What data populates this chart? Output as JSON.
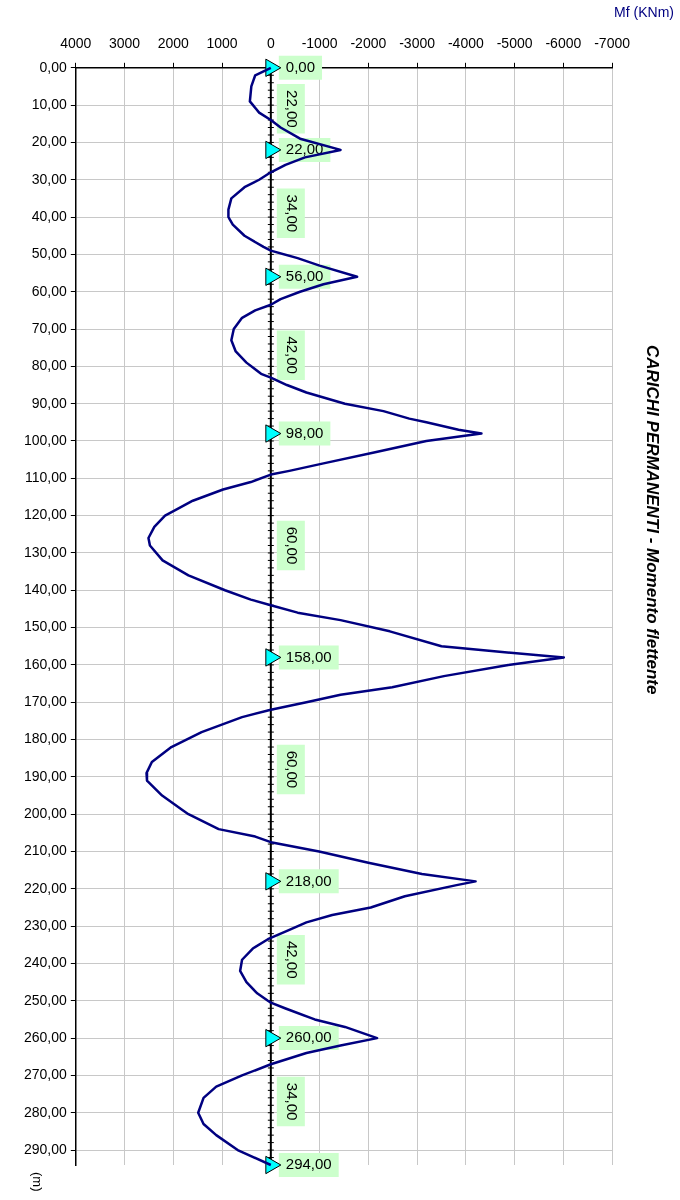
{
  "chart_data": {
    "type": "line",
    "orientation": "horizontal",
    "title": "CARICHI PERMANENTI - Momento flettente",
    "xlabel": "Mf (KNm)",
    "ylabel": "(m)",
    "xlim": [
      4000,
      -7000
    ],
    "xticks": [
      4000,
      3000,
      2000,
      1000,
      0,
      -1000,
      -2000,
      -3000,
      -4000,
      -5000,
      -6000,
      -7000
    ],
    "ylim": [
      294,
      0
    ],
    "yticks": [
      {
        "value": 0,
        "label": "0,00"
      },
      {
        "value": 10,
        "label": "10,00"
      },
      {
        "value": 20,
        "label": "20,00"
      },
      {
        "value": 30,
        "label": "30,00"
      },
      {
        "value": 40,
        "label": "40,00"
      },
      {
        "value": 50,
        "label": "50,00"
      },
      {
        "value": 60,
        "label": "60,00"
      },
      {
        "value": 70,
        "label": "70,00"
      },
      {
        "value": 80,
        "label": "80,00"
      },
      {
        "value": 90,
        "label": "90,00"
      },
      {
        "value": 100,
        "label": "100,00"
      },
      {
        "value": 110,
        "label": "110,00"
      },
      {
        "value": 120,
        "label": "120,00"
      },
      {
        "value": 130,
        "label": "130,00"
      },
      {
        "value": 140,
        "label": "140,00"
      },
      {
        "value": 150,
        "label": "150,00"
      },
      {
        "value": 160,
        "label": "160,00"
      },
      {
        "value": 170,
        "label": "170,00"
      },
      {
        "value": 180,
        "label": "180,00"
      },
      {
        "value": 190,
        "label": "190,00"
      },
      {
        "value": 200,
        "label": "200,00"
      },
      {
        "value": 210,
        "label": "210,00"
      },
      {
        "value": 220,
        "label": "220,00"
      },
      {
        "value": 230,
        "label": "230,00"
      },
      {
        "value": 240,
        "label": "240,00"
      },
      {
        "value": 250,
        "label": "250,00"
      },
      {
        "value": 260,
        "label": "260,00"
      },
      {
        "value": 270,
        "label": "270,00"
      },
      {
        "value": 280,
        "label": "280,00"
      },
      {
        "value": 290,
        "label": "290,00"
      }
    ],
    "grid": true,
    "legend": false,
    "ref_lines": [
      {
        "axis": "x",
        "value": 0,
        "color": "#000000"
      }
    ],
    "series": [
      {
        "type": "line",
        "color": "#000080",
        "marker": "none",
        "x": [
          0,
          2,
          5,
          9,
          12,
          14,
          16,
          19,
          22,
          24,
          26,
          28,
          30,
          32,
          35,
          38,
          40,
          42,
          45,
          48,
          49,
          51,
          53,
          56,
          58,
          60,
          62,
          63.5,
          65,
          67,
          70,
          73,
          76,
          79,
          82,
          83,
          85,
          87,
          90,
          92,
          94,
          95,
          97,
          98,
          100,
          103,
          106,
          108,
          109,
          111,
          113,
          116,
          120,
          123,
          126,
          128,
          132,
          136,
          140,
          142.5,
          144,
          146,
          148,
          151,
          155,
          156.5,
          158,
          160,
          163,
          166,
          168,
          170,
          172,
          174,
          178,
          182,
          186,
          189,
          191,
          195,
          199,
          200,
          204,
          206,
          207.5,
          210,
          213,
          216,
          218,
          219,
          222,
          225,
          227,
          229,
          231,
          233.5,
          236,
          239,
          242,
          245,
          248,
          250,
          250.5,
          252,
          255,
          257,
          260,
          262,
          264,
          267,
          270,
          273,
          276,
          280,
          283,
          286,
          290,
          294
        ],
        "values": [
          0,
          320,
          400,
          430,
          240,
          0,
          -200,
          -600,
          -1430,
          -700,
          -300,
          0,
          240,
          540,
          810,
          870,
          870,
          780,
          540,
          150,
          0,
          -550,
          -1000,
          -1770,
          -1080,
          -600,
          -200,
          0,
          320,
          590,
          760,
          810,
          720,
          500,
          200,
          0,
          -330,
          -730,
          -1520,
          -2310,
          -2840,
          -3190,
          -3850,
          -4320,
          -3190,
          -2140,
          -1080,
          -380,
          0,
          410,
          980,
          1600,
          2170,
          2390,
          2510,
          2480,
          2220,
          1690,
          940,
          410,
          0,
          -550,
          -1430,
          -2440,
          -3500,
          -4690,
          -6010,
          -4870,
          -3550,
          -2490,
          -1430,
          -730,
          0,
          590,
          1420,
          2040,
          2440,
          2550,
          2540,
          2230,
          1800,
          1690,
          1070,
          320,
          0,
          -990,
          -2000,
          -3100,
          -4200,
          -3810,
          -2750,
          -2050,
          -1260,
          -730,
          -380,
          60,
          370,
          590,
          630,
          500,
          280,
          60,
          0,
          -290,
          -900,
          -1520,
          -2180,
          -1430,
          -730,
          0,
          590,
          1120,
          1380,
          1490,
          1380,
          1120,
          680,
          0
        ]
      },
      {
        "type": "scatter",
        "color": "#00ffff",
        "marker": "triangle",
        "x": [
          0,
          22,
          56,
          98,
          158,
          218,
          260,
          294
        ],
        "values": [
          0,
          0,
          0,
          0,
          0,
          0,
          0,
          0
        ]
      }
    ],
    "annotations": [
      "0,00",
      "22,00",
      "22,00",
      "34,00",
      "56,00",
      "42,00",
      "98,00",
      "60,00",
      "158,00",
      "60,00",
      "218,00",
      "42,00",
      "260,00",
      "34,00",
      "294,00"
    ]
  }
}
